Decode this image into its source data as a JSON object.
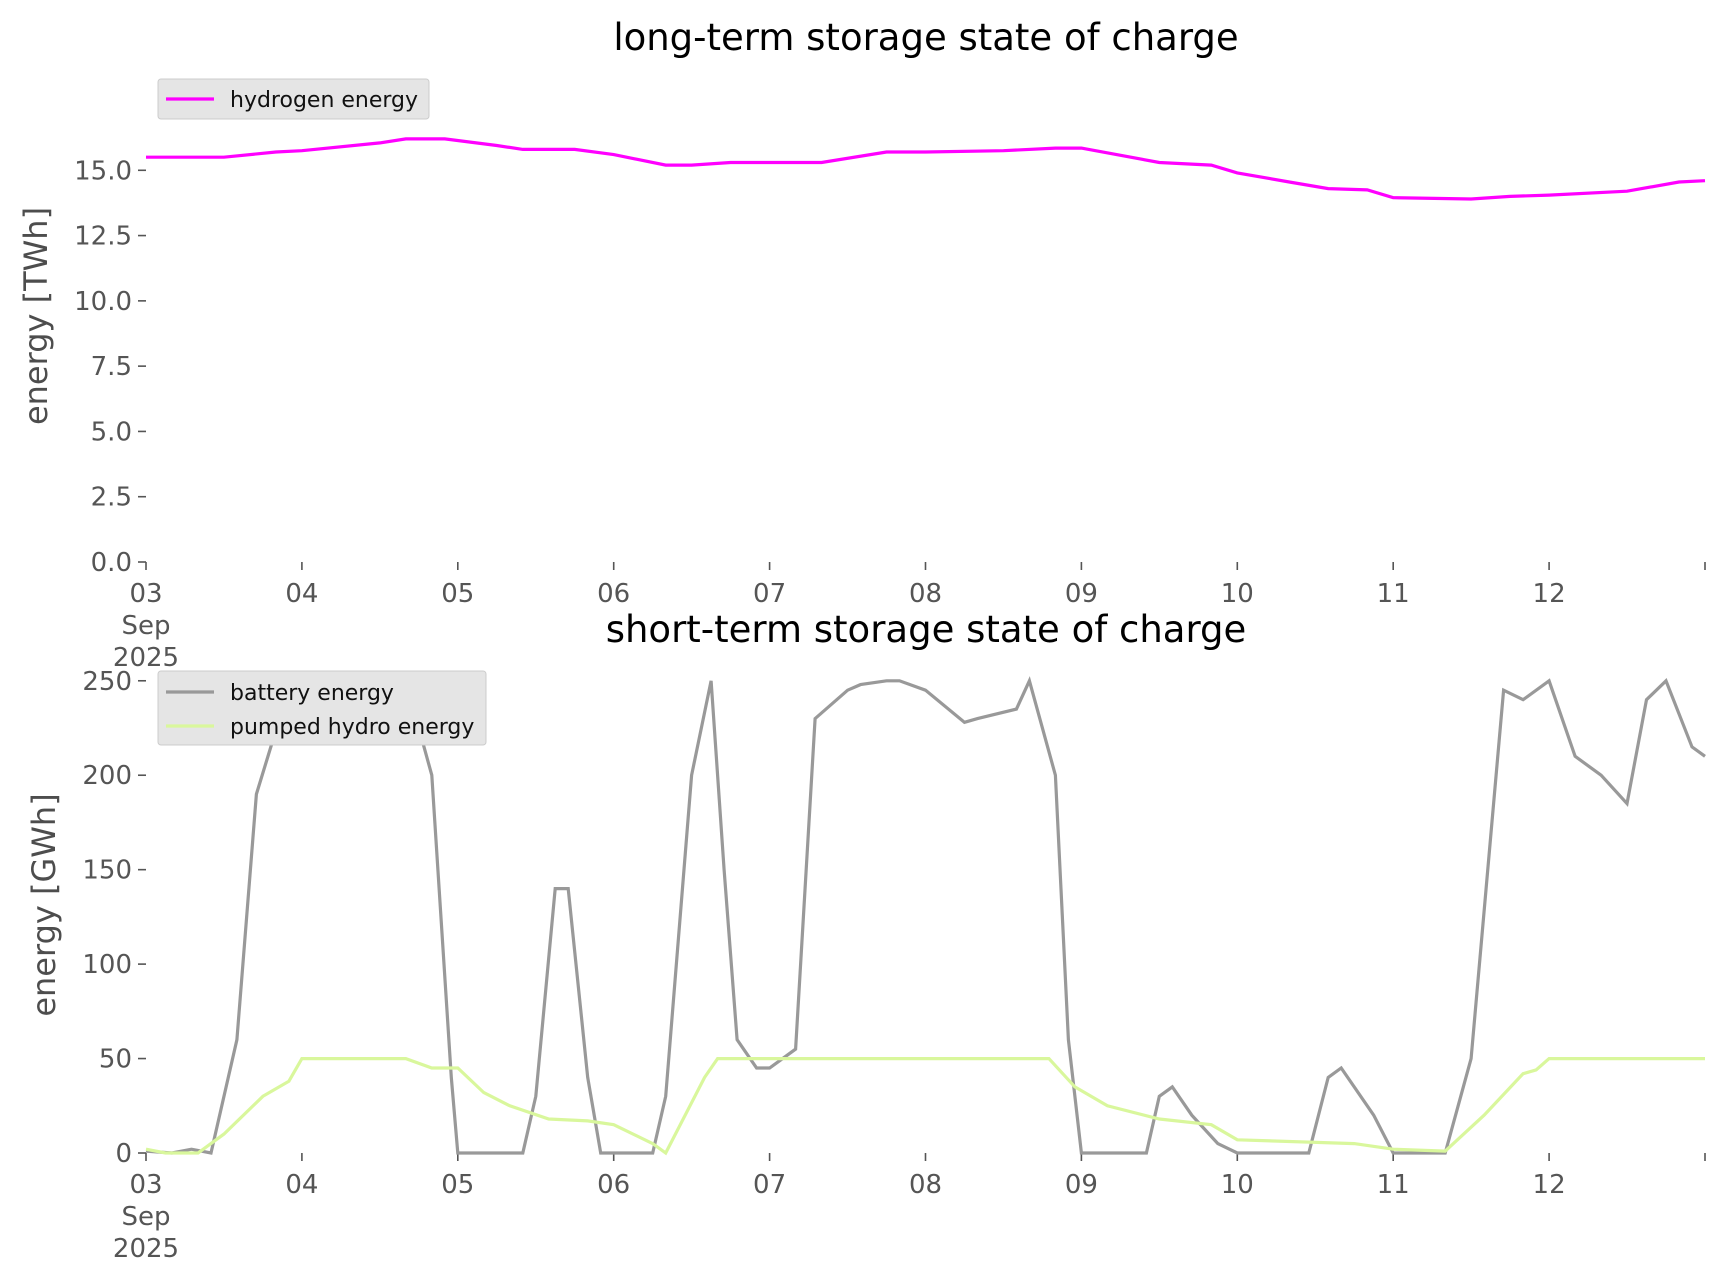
{
  "chart_data": [
    {
      "type": "line",
      "title": "long-term storage state of charge",
      "xlabel": "",
      "ylabel": "energy [TWh]",
      "x_range": [
        "2025-09-03",
        "2025-09-13"
      ],
      "ylim": [
        0,
        17.5
      ],
      "x_tick_labels": [
        "03\nSep\n2025",
        "04",
        "05",
        "06",
        "07",
        "08",
        "09",
        "10",
        "11",
        "12"
      ],
      "y_tick_labels": [
        "0.0",
        "2.5",
        "5.0",
        "7.5",
        "10.0",
        "12.5",
        "15.0"
      ],
      "y_ticks": [
        0,
        2.5,
        5,
        7.5,
        10,
        12.5,
        15
      ],
      "legend_position": "top-left",
      "grid": false,
      "series": [
        {
          "name": "hydrogen energy",
          "color": "#ff00ff",
          "x": [
            "2025-09-03 00:00",
            "2025-09-03 12:00",
            "2025-09-03 20:00",
            "2025-09-04 00:00",
            "2025-09-04 12:00",
            "2025-09-04 16:00",
            "2025-09-04 22:00",
            "2025-09-05 06:00",
            "2025-09-05 10:00",
            "2025-09-05 18:00",
            "2025-09-06 00:00",
            "2025-09-06 08:00",
            "2025-09-06 12:00",
            "2025-09-06 18:00",
            "2025-09-07 08:00",
            "2025-09-07 18:00",
            "2025-09-08 00:00",
            "2025-09-08 12:00",
            "2025-09-08 20:00",
            "2025-09-09 00:00",
            "2025-09-09 12:00",
            "2025-09-09 20:00",
            "2025-09-10 00:00",
            "2025-09-10 08:00",
            "2025-09-10 14:00",
            "2025-09-10 20:00",
            "2025-09-11 00:00",
            "2025-09-11 12:00",
            "2025-09-11 18:00",
            "2025-09-12 00:00",
            "2025-09-12 12:00",
            "2025-09-12 20:00",
            "2025-09-13 00:00"
          ],
          "y": [
            15.5,
            15.5,
            15.7,
            15.75,
            16.05,
            16.2,
            16.2,
            15.95,
            15.8,
            15.8,
            15.6,
            15.2,
            15.2,
            15.3,
            15.3,
            15.7,
            15.7,
            15.75,
            15.85,
            15.85,
            15.3,
            15.2,
            14.9,
            14.55,
            14.3,
            14.25,
            13.95,
            13.9,
            14.0,
            14.05,
            14.2,
            14.55,
            14.6
          ]
        }
      ]
    },
    {
      "type": "line",
      "title": "short-term storage state of charge",
      "xlabel": "",
      "ylabel": "energy [GWh]",
      "x_range": [
        "2025-09-03",
        "2025-09-13"
      ],
      "ylim": [
        0,
        252
      ],
      "x_tick_labels": [
        "03\nSep\n2025",
        "04",
        "05",
        "06",
        "07",
        "08",
        "09",
        "10",
        "11",
        "12"
      ],
      "y_tick_labels": [
        "0",
        "50",
        "100",
        "150",
        "200",
        "250"
      ],
      "y_ticks": [
        0,
        50,
        100,
        150,
        200,
        250
      ],
      "legend_position": "top-left",
      "grid": false,
      "series": [
        {
          "name": "battery energy",
          "color": "#999999",
          "x": [
            "2025-09-03 00:00",
            "2025-09-03 04:00",
            "2025-09-03 07:00",
            "2025-09-03 10:00",
            "2025-09-03 14:00",
            "2025-09-03 17:00",
            "2025-09-03 21:00",
            "2025-09-04 02:00",
            "2025-09-04 16:00",
            "2025-09-04 20:00",
            "2025-09-04 23:00",
            "2025-09-05 00:00",
            "2025-09-05 10:00",
            "2025-09-05 12:00",
            "2025-09-05 15:00",
            "2025-09-05 17:00",
            "2025-09-05 20:00",
            "2025-09-05 22:00",
            "2025-09-06 00:00",
            "2025-09-06 06:00",
            "2025-09-06 08:00",
            "2025-09-06 12:00",
            "2025-09-06 15:00",
            "2025-09-06 17:00",
            "2025-09-06 19:00",
            "2025-09-06 22:00",
            "2025-09-07 00:00",
            "2025-09-07 04:00",
            "2025-09-07 07:00",
            "2025-09-07 12:00",
            "2025-09-07 14:00",
            "2025-09-07 18:00",
            "2025-09-07 20:00",
            "2025-09-08 00:00",
            "2025-09-08 06:00",
            "2025-09-08 08:00",
            "2025-09-08 14:00",
            "2025-09-08 16:00",
            "2025-09-08 20:00",
            "2025-09-08 22:00",
            "2025-09-09 00:00",
            "2025-09-09 10:00",
            "2025-09-09 12:00",
            "2025-09-09 14:00",
            "2025-09-09 17:00",
            "2025-09-09 21:00",
            "2025-09-10 00:00",
            "2025-09-10 11:00",
            "2025-09-10 14:00",
            "2025-09-10 16:00",
            "2025-09-10 21:00",
            "2025-09-11 00:00",
            "2025-09-11 04:00",
            "2025-09-11 08:00",
            "2025-09-11 12:00",
            "2025-09-11 17:00",
            "2025-09-11 20:00",
            "2025-09-12 00:00",
            "2025-09-12 04:00",
            "2025-09-12 08:00",
            "2025-09-12 12:00",
            "2025-09-12 15:00",
            "2025-09-12 18:00",
            "2025-09-12 22:00",
            "2025-09-13 00:00"
          ],
          "y": [
            1,
            0,
            2,
            0,
            60,
            190,
            235,
            245,
            250,
            200,
            40,
            0,
            0,
            30,
            140,
            140,
            40,
            0,
            0,
            0,
            30,
            200,
            250,
            150,
            60,
            45,
            45,
            55,
            230,
            245,
            248,
            250,
            250,
            245,
            228,
            230,
            235,
            250,
            200,
            60,
            0,
            0,
            30,
            35,
            20,
            5,
            0,
            0,
            40,
            45,
            20,
            0,
            0,
            0,
            50,
            245,
            240,
            250,
            210,
            200,
            185,
            240,
            250,
            215,
            210
          ]
        },
        {
          "name": "pumped hydro energy",
          "color": "#d9f79c",
          "x": [
            "2025-09-03 00:00",
            "2025-09-03 03:00",
            "2025-09-03 08:00",
            "2025-09-03 12:00",
            "2025-09-03 18:00",
            "2025-09-03 22:00",
            "2025-09-04 00:00",
            "2025-09-04 16:00",
            "2025-09-04 20:00",
            "2025-09-05 00:00",
            "2025-09-05 04:00",
            "2025-09-05 08:00",
            "2025-09-05 14:00",
            "2025-09-05 20:00",
            "2025-09-06 00:00",
            "2025-09-06 06:00",
            "2025-09-06 08:00",
            "2025-09-06 14:00",
            "2025-09-06 16:00",
            "2025-09-06 20:00",
            "2025-09-08 00:00",
            "2025-09-08 19:00",
            "2025-09-08 23:00",
            "2025-09-09 04:00",
            "2025-09-09 12:00",
            "2025-09-09 20:00",
            "2025-09-10 00:00",
            "2025-09-10 18:00",
            "2025-09-11 00:00",
            "2025-09-11 08:00",
            "2025-09-11 14:00",
            "2025-09-11 20:00",
            "2025-09-11 22:00",
            "2025-09-12 00:00",
            "2025-09-13 00:00"
          ],
          "y": [
            2,
            0,
            0,
            10,
            30,
            38,
            50,
            50,
            45,
            45,
            32,
            25,
            18,
            17,
            15,
            5,
            0,
            40,
            50,
            50,
            50,
            50,
            35,
            25,
            18,
            15,
            7,
            5,
            2,
            1,
            20,
            42,
            44,
            50,
            50
          ]
        }
      ]
    }
  ]
}
